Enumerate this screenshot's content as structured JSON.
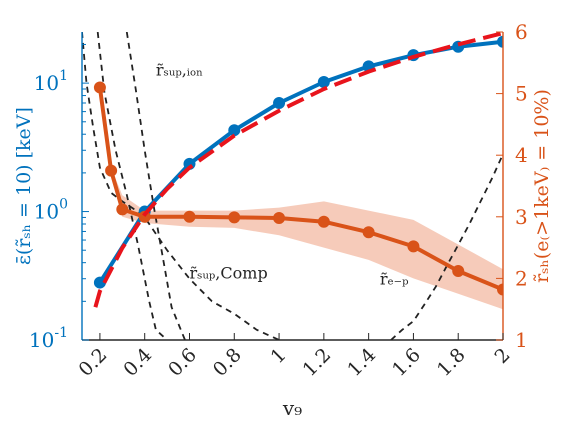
{
  "chart_data": {
    "type": "line",
    "xlabel": "v₉",
    "ylabel_left": "ε̄(r̃ₛₕ = 10) [keV]",
    "ylabel_right": "r̃ₛₕ(e₍>1keV₎ = 10%)",
    "xlim": [
      0.12,
      2.0
    ],
    "ylim_left": [
      0.1,
      25
    ],
    "ylim_right": [
      1,
      6
    ],
    "yscale_left": "log",
    "yscale_right": "linear",
    "x_ticks": [
      "0.2",
      "0.4",
      "0.6",
      "0.8",
      "1",
      "1.2",
      "1.4",
      "1.6",
      "1.8",
      "2"
    ],
    "y_ticks_left": [
      {
        "base": "10",
        "exp": "-1",
        "value": 0.1
      },
      {
        "base": "10",
        "exp": "0",
        "value": 1
      },
      {
        "base": "10",
        "exp": "1",
        "value": 10
      }
    ],
    "y_ticks_right": [
      "1",
      "2",
      "3",
      "4",
      "5",
      "6"
    ],
    "colors": {
      "blue": "#0072bd",
      "orange": "#d95319",
      "band": "#f4c2ae",
      "red_dashed": "#e8141c",
      "black_dashed": "#222222"
    },
    "series": [
      {
        "axis": "left",
        "color": "#0072bd",
        "x": [
          0.2,
          0.4,
          0.6,
          0.8,
          1.0,
          1.2,
          1.4,
          1.6,
          1.8,
          2.0
        ],
        "y": [
          0.28,
          1.0,
          2.35,
          4.3,
          7.0,
          10.2,
          13.5,
          16.5,
          19.2,
          21.0
        ]
      },
      {
        "axis": "right",
        "color": "#d95319",
        "x": [
          0.2,
          0.25,
          0.3,
          0.4,
          0.6,
          0.8,
          1.0,
          1.2,
          1.4,
          1.6,
          1.8,
          2.0
        ],
        "y": [
          5.1,
          3.75,
          3.12,
          3.0,
          3.0,
          2.99,
          2.98,
          2.92,
          2.75,
          2.52,
          2.12,
          1.82
        ],
        "band_low": [
          5.1,
          3.7,
          3.0,
          2.9,
          2.84,
          2.82,
          2.7,
          2.5,
          2.3,
          2.0,
          1.75,
          1.5
        ],
        "band_high": [
          5.1,
          3.8,
          3.35,
          3.1,
          3.1,
          3.1,
          3.15,
          3.25,
          3.1,
          2.95,
          2.55,
          2.15
        ]
      },
      {
        "axis": "left",
        "style": "dashed",
        "color": "#e8141c",
        "x": [
          0.18,
          0.2,
          0.3,
          0.4,
          0.5,
          0.6,
          0.8,
          1.0,
          1.2,
          1.4,
          1.6,
          1.8,
          2.0
        ],
        "y": [
          0.18,
          0.24,
          0.52,
          0.95,
          1.5,
          2.2,
          3.9,
          6.1,
          9.0,
          12.3,
          16.0,
          20.0,
          24.5
        ]
      },
      {
        "axis": "left",
        "style": "dashed",
        "color": "#222222",
        "x": [
          0.19,
          0.22,
          0.27,
          0.32,
          0.37,
          0.42,
          0.45,
          0.5
        ],
        "y": [
          25,
          8.5,
          3.0,
          1.35,
          0.55,
          0.2,
          0.12,
          0.1
        ]
      },
      {
        "axis": "left",
        "style": "dashed",
        "color": "#222222",
        "x": [
          0.32,
          0.36,
          0.4,
          0.44,
          0.48,
          0.52,
          0.58
        ],
        "y": [
          25,
          9.0,
          3.0,
          1.1,
          0.45,
          0.18,
          0.1
        ]
      },
      {
        "axis": "left",
        "style": "dashed",
        "color": "#222222",
        "x": [
          0.12,
          0.14,
          0.17,
          0.2,
          0.25,
          0.3,
          0.35,
          0.4,
          0.5,
          0.6,
          0.7,
          0.8,
          0.9,
          1.0
        ],
        "y": [
          25,
          10.0,
          4.5,
          2.2,
          1.4,
          1.2,
          1.05,
          0.9,
          0.5,
          0.3,
          0.2,
          0.16,
          0.12,
          0.1
        ]
      },
      {
        "axis": "left",
        "style": "dashed",
        "color": "#222222",
        "x": [
          1.5,
          1.55,
          1.6,
          1.65,
          1.7,
          1.75,
          1.8,
          1.85,
          1.9,
          1.95,
          2.0
        ],
        "y": [
          0.1,
          0.12,
          0.14,
          0.19,
          0.26,
          0.38,
          0.55,
          0.8,
          1.2,
          1.8,
          2.8
        ]
      }
    ],
    "annotations": [
      {
        "text": "r̃ₛᵤₚ,ᵢₒₙ",
        "x": 0.45,
        "y": 11.5
      },
      {
        "text": "r̃ₛᵤₚ,Comp",
        "x": 0.6,
        "y": 0.3
      },
      {
        "text": "r̃ₑ₋ₚ",
        "x": 1.45,
        "y": 0.27
      }
    ]
  }
}
